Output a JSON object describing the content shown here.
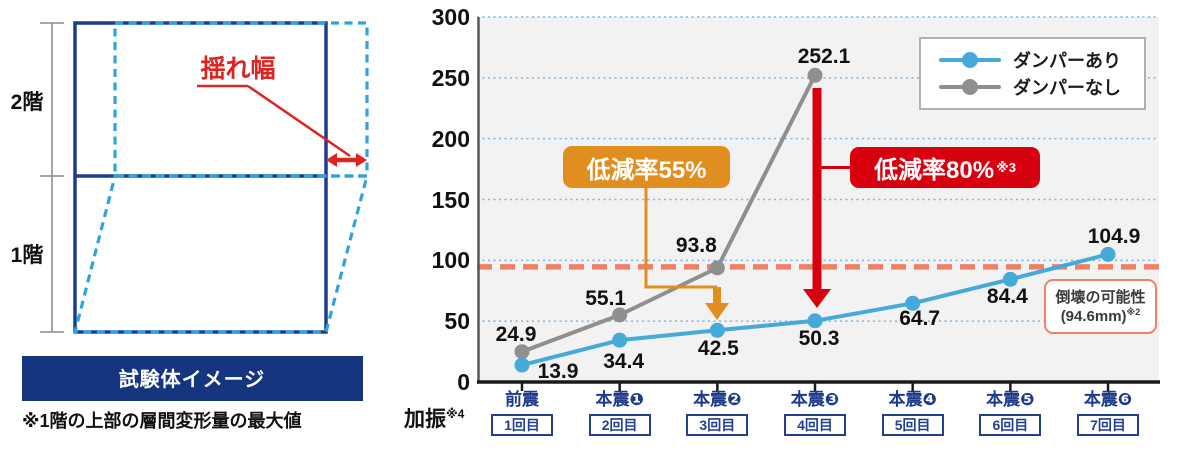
{
  "left_panel": {
    "floor2_label": "2階",
    "floor1_label": "1階",
    "sway_label": "揺れ幅",
    "caption": "試験体イメージ",
    "note": "※1階の上部の層間変形量の最大値"
  },
  "chart_data": {
    "type": "line",
    "x_axis_title": "加振",
    "x_axis_title_sup": "※4",
    "ylim": [
      0,
      300
    ],
    "yticks": [
      0,
      50,
      100,
      150,
      200,
      250,
      300
    ],
    "grid": "horizontal-dotted",
    "legend_position": "top-right",
    "categories": [
      {
        "name": "前震",
        "run": "1回目"
      },
      {
        "name": "本震❶",
        "run": "2回目"
      },
      {
        "name": "本震❷",
        "run": "3回目"
      },
      {
        "name": "本震❸",
        "run": "4回目"
      },
      {
        "name": "本震❹",
        "run": "5回目"
      },
      {
        "name": "本震❺",
        "run": "6回目"
      },
      {
        "name": "本震❻",
        "run": "7回目"
      }
    ],
    "series": [
      {
        "name": "ダンパーあり",
        "color": "#45a9da",
        "values": [
          13.9,
          34.4,
          42.5,
          50.3,
          64.7,
          84.4,
          104.9
        ]
      },
      {
        "name": "ダンパーなし",
        "color": "#8f8f8f",
        "values": [
          24.9,
          55.1,
          93.8,
          252.1
        ]
      }
    ],
    "threshold": {
      "value": 94.6,
      "color": "#ee8165"
    },
    "annotations": {
      "reduction_55": {
        "text": "低減率55%",
        "color": "#e08e1f",
        "target_category": 2
      },
      "reduction_80": {
        "text": "低減率80%",
        "sup": "※3",
        "color": "#d7000f",
        "target_category": 3
      },
      "collapse_note": {
        "line1": "倒壊の可能性",
        "line2": "(94.6mm)",
        "sup": "※2"
      }
    }
  },
  "colors": {
    "navy": "#1c3c8c",
    "banner_navy": "#16357f",
    "cyan_dashed": "#2fa3e0",
    "diagram_red": "#dd2420",
    "bracket_gray": "#8a8a8a",
    "red": "#d7000f",
    "orange": "#e08e1f",
    "salmon": "#ee8165",
    "plot_bg": "#f2f2f2",
    "grid": "#79b5e2",
    "axis_dark": "#1a1a1a",
    "spine_gray": "#595959",
    "label_navy": "#1e3a8a"
  }
}
